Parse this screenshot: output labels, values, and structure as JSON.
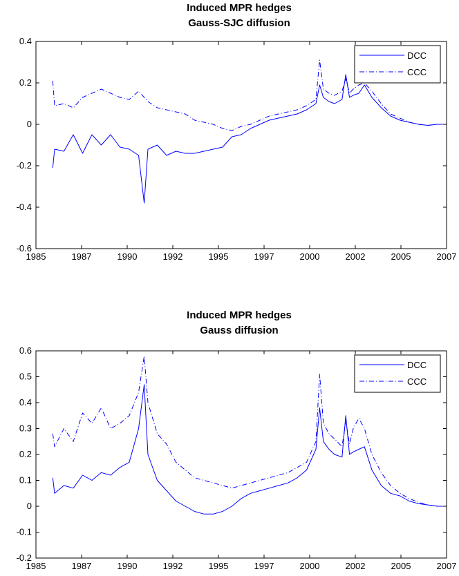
{
  "colors": {
    "series_line": "#0000ff",
    "axes": "#000000",
    "background": "#ffffff"
  },
  "chart_data": [
    {
      "type": "line",
      "title": "Induced MPR hedges",
      "subtitle": "Gauss-SJC diffusion",
      "xlim": [
        1985,
        2007
      ],
      "ylim": [
        -0.6,
        0.4
      ],
      "x_ticks": [
        "1985",
        "1987",
        "1990",
        "1992",
        "1995",
        "1997",
        "2000",
        "2002",
        "2005",
        "2007"
      ],
      "y_ticks": [
        "0.4",
        "0.2",
        "0",
        "-0.2",
        "-0.4",
        "-0.6"
      ],
      "grid": false,
      "legend_position": "top-right",
      "series": [
        {
          "name": "DCC",
          "style": "solid",
          "x": [
            1985.9,
            1986.0,
            1986.5,
            1987.0,
            1987.5,
            1988.0,
            1988.5,
            1989.0,
            1989.5,
            1990.0,
            1990.5,
            1990.8,
            1991.0,
            1991.5,
            1992.0,
            1992.5,
            1993.0,
            1993.5,
            1994.0,
            1994.5,
            1995.0,
            1995.5,
            1996.0,
            1996.5,
            1997.0,
            1997.5,
            1998.0,
            1998.5,
            1999.0,
            1999.5,
            2000.0,
            2000.2,
            2000.4,
            2000.7,
            2001.0,
            2001.4,
            2001.6,
            2001.8,
            2002.0,
            2002.3,
            2002.6,
            2003.0,
            2003.5,
            2004.0,
            2004.5,
            2005.0,
            2005.5,
            2006.0,
            2006.5,
            2006.8
          ],
          "y": [
            -0.21,
            -0.12,
            -0.13,
            -0.05,
            -0.14,
            -0.05,
            -0.1,
            -0.05,
            -0.11,
            -0.12,
            -0.15,
            -0.38,
            -0.12,
            -0.1,
            -0.15,
            -0.13,
            -0.14,
            -0.14,
            -0.13,
            -0.12,
            -0.11,
            -0.06,
            -0.05,
            -0.02,
            0.0,
            0.02,
            0.03,
            0.04,
            0.05,
            0.07,
            0.1,
            0.19,
            0.13,
            0.11,
            0.1,
            0.12,
            0.24,
            0.13,
            0.14,
            0.15,
            0.19,
            0.13,
            0.08,
            0.04,
            0.02,
            0.01,
            0.0,
            -0.005,
            0.0,
            0.0
          ]
        },
        {
          "name": "CCC",
          "style": "dash-dot",
          "x": [
            1985.9,
            1986.0,
            1986.5,
            1987.0,
            1987.5,
            1988.0,
            1988.5,
            1989.0,
            1989.5,
            1990.0,
            1990.5,
            1991.0,
            1991.5,
            1992.0,
            1992.5,
            1993.0,
            1993.5,
            1994.0,
            1994.5,
            1995.0,
            1995.5,
            1996.0,
            1996.5,
            1997.0,
            1997.5,
            1998.0,
            1998.5,
            1999.0,
            1999.5,
            2000.0,
            2000.2,
            2000.4,
            2000.7,
            2001.0,
            2001.4,
            2001.6,
            2001.8,
            2002.0,
            2002.3,
            2002.6,
            2003.0,
            2003.5,
            2004.0,
            2004.5,
            2005.0,
            2005.5,
            2006.0,
            2006.5,
            2006.8
          ],
          "y": [
            0.21,
            0.09,
            0.1,
            0.08,
            0.13,
            0.15,
            0.17,
            0.15,
            0.13,
            0.12,
            0.16,
            0.11,
            0.08,
            0.07,
            0.06,
            0.05,
            0.02,
            0.01,
            0.0,
            -0.02,
            -0.03,
            -0.01,
            0.0,
            0.02,
            0.04,
            0.05,
            0.06,
            0.07,
            0.09,
            0.12,
            0.31,
            0.17,
            0.15,
            0.14,
            0.16,
            0.22,
            0.15,
            0.17,
            0.19,
            0.2,
            0.16,
            0.1,
            0.05,
            0.03,
            0.01,
            0.0,
            -0.005,
            0.0,
            0.0
          ]
        }
      ]
    },
    {
      "type": "line",
      "title": "Induced MPR hedges",
      "subtitle": "Gauss diffusion",
      "xlim": [
        1985,
        2007
      ],
      "ylim": [
        -0.2,
        0.6
      ],
      "x_ticks": [
        "1985",
        "1987",
        "1990",
        "1992",
        "1995",
        "1997",
        "2000",
        "2002",
        "2005",
        "2007"
      ],
      "y_ticks": [
        "0.6",
        "0.5",
        "0.4",
        "0.3",
        "0.2",
        "0.1",
        "0",
        "-0.1",
        "-0.2"
      ],
      "grid": false,
      "legend_position": "top-right",
      "series": [
        {
          "name": "DCC",
          "style": "solid",
          "x": [
            1985.9,
            1986.0,
            1986.5,
            1987.0,
            1987.5,
            1988.0,
            1988.5,
            1989.0,
            1989.5,
            1990.0,
            1990.5,
            1990.8,
            1991.0,
            1991.5,
            1992.0,
            1992.5,
            1993.0,
            1993.5,
            1994.0,
            1994.5,
            1995.0,
            1995.5,
            1996.0,
            1996.5,
            1997.0,
            1997.5,
            1998.0,
            1998.5,
            1999.0,
            1999.5,
            2000.0,
            2000.2,
            2000.4,
            2000.7,
            2001.0,
            2001.4,
            2001.6,
            2001.8,
            2002.0,
            2002.3,
            2002.6,
            2003.0,
            2003.5,
            2004.0,
            2004.5,
            2005.0,
            2005.5,
            2006.0,
            2006.5,
            2006.8
          ],
          "y": [
            0.11,
            0.05,
            0.08,
            0.07,
            0.12,
            0.1,
            0.13,
            0.12,
            0.15,
            0.17,
            0.3,
            0.47,
            0.2,
            0.1,
            0.06,
            0.02,
            0.0,
            -0.02,
            -0.03,
            -0.03,
            -0.02,
            0.0,
            0.03,
            0.05,
            0.06,
            0.07,
            0.08,
            0.09,
            0.11,
            0.14,
            0.22,
            0.38,
            0.25,
            0.22,
            0.2,
            0.19,
            0.35,
            0.2,
            0.21,
            0.22,
            0.23,
            0.14,
            0.08,
            0.05,
            0.04,
            0.02,
            0.01,
            0.005,
            0.0,
            0.0
          ]
        },
        {
          "name": "CCC",
          "style": "dash-dot",
          "x": [
            1985.9,
            1986.0,
            1986.5,
            1987.0,
            1987.5,
            1988.0,
            1988.5,
            1989.0,
            1989.5,
            1990.0,
            1990.5,
            1990.8,
            1991.0,
            1991.5,
            1992.0,
            1992.5,
            1993.0,
            1993.5,
            1994.0,
            1994.5,
            1995.0,
            1995.5,
            1996.0,
            1996.5,
            1997.0,
            1997.5,
            1998.0,
            1998.5,
            1999.0,
            1999.5,
            2000.0,
            2000.2,
            2000.4,
            2000.7,
            2001.0,
            2001.4,
            2001.6,
            2001.8,
            2002.0,
            2002.3,
            2002.6,
            2003.0,
            2003.5,
            2004.0,
            2004.5,
            2005.0,
            2005.5,
            2006.0,
            2006.5,
            2006.8
          ],
          "y": [
            0.28,
            0.23,
            0.3,
            0.25,
            0.36,
            0.32,
            0.38,
            0.3,
            0.32,
            0.35,
            0.44,
            0.58,
            0.4,
            0.28,
            0.24,
            0.17,
            0.14,
            0.11,
            0.1,
            0.09,
            0.08,
            0.07,
            0.08,
            0.09,
            0.1,
            0.11,
            0.12,
            0.13,
            0.15,
            0.17,
            0.25,
            0.51,
            0.32,
            0.28,
            0.26,
            0.23,
            0.33,
            0.24,
            0.3,
            0.34,
            0.3,
            0.2,
            0.13,
            0.08,
            0.05,
            0.03,
            0.015,
            0.005,
            0.0,
            0.0
          ]
        }
      ]
    }
  ]
}
